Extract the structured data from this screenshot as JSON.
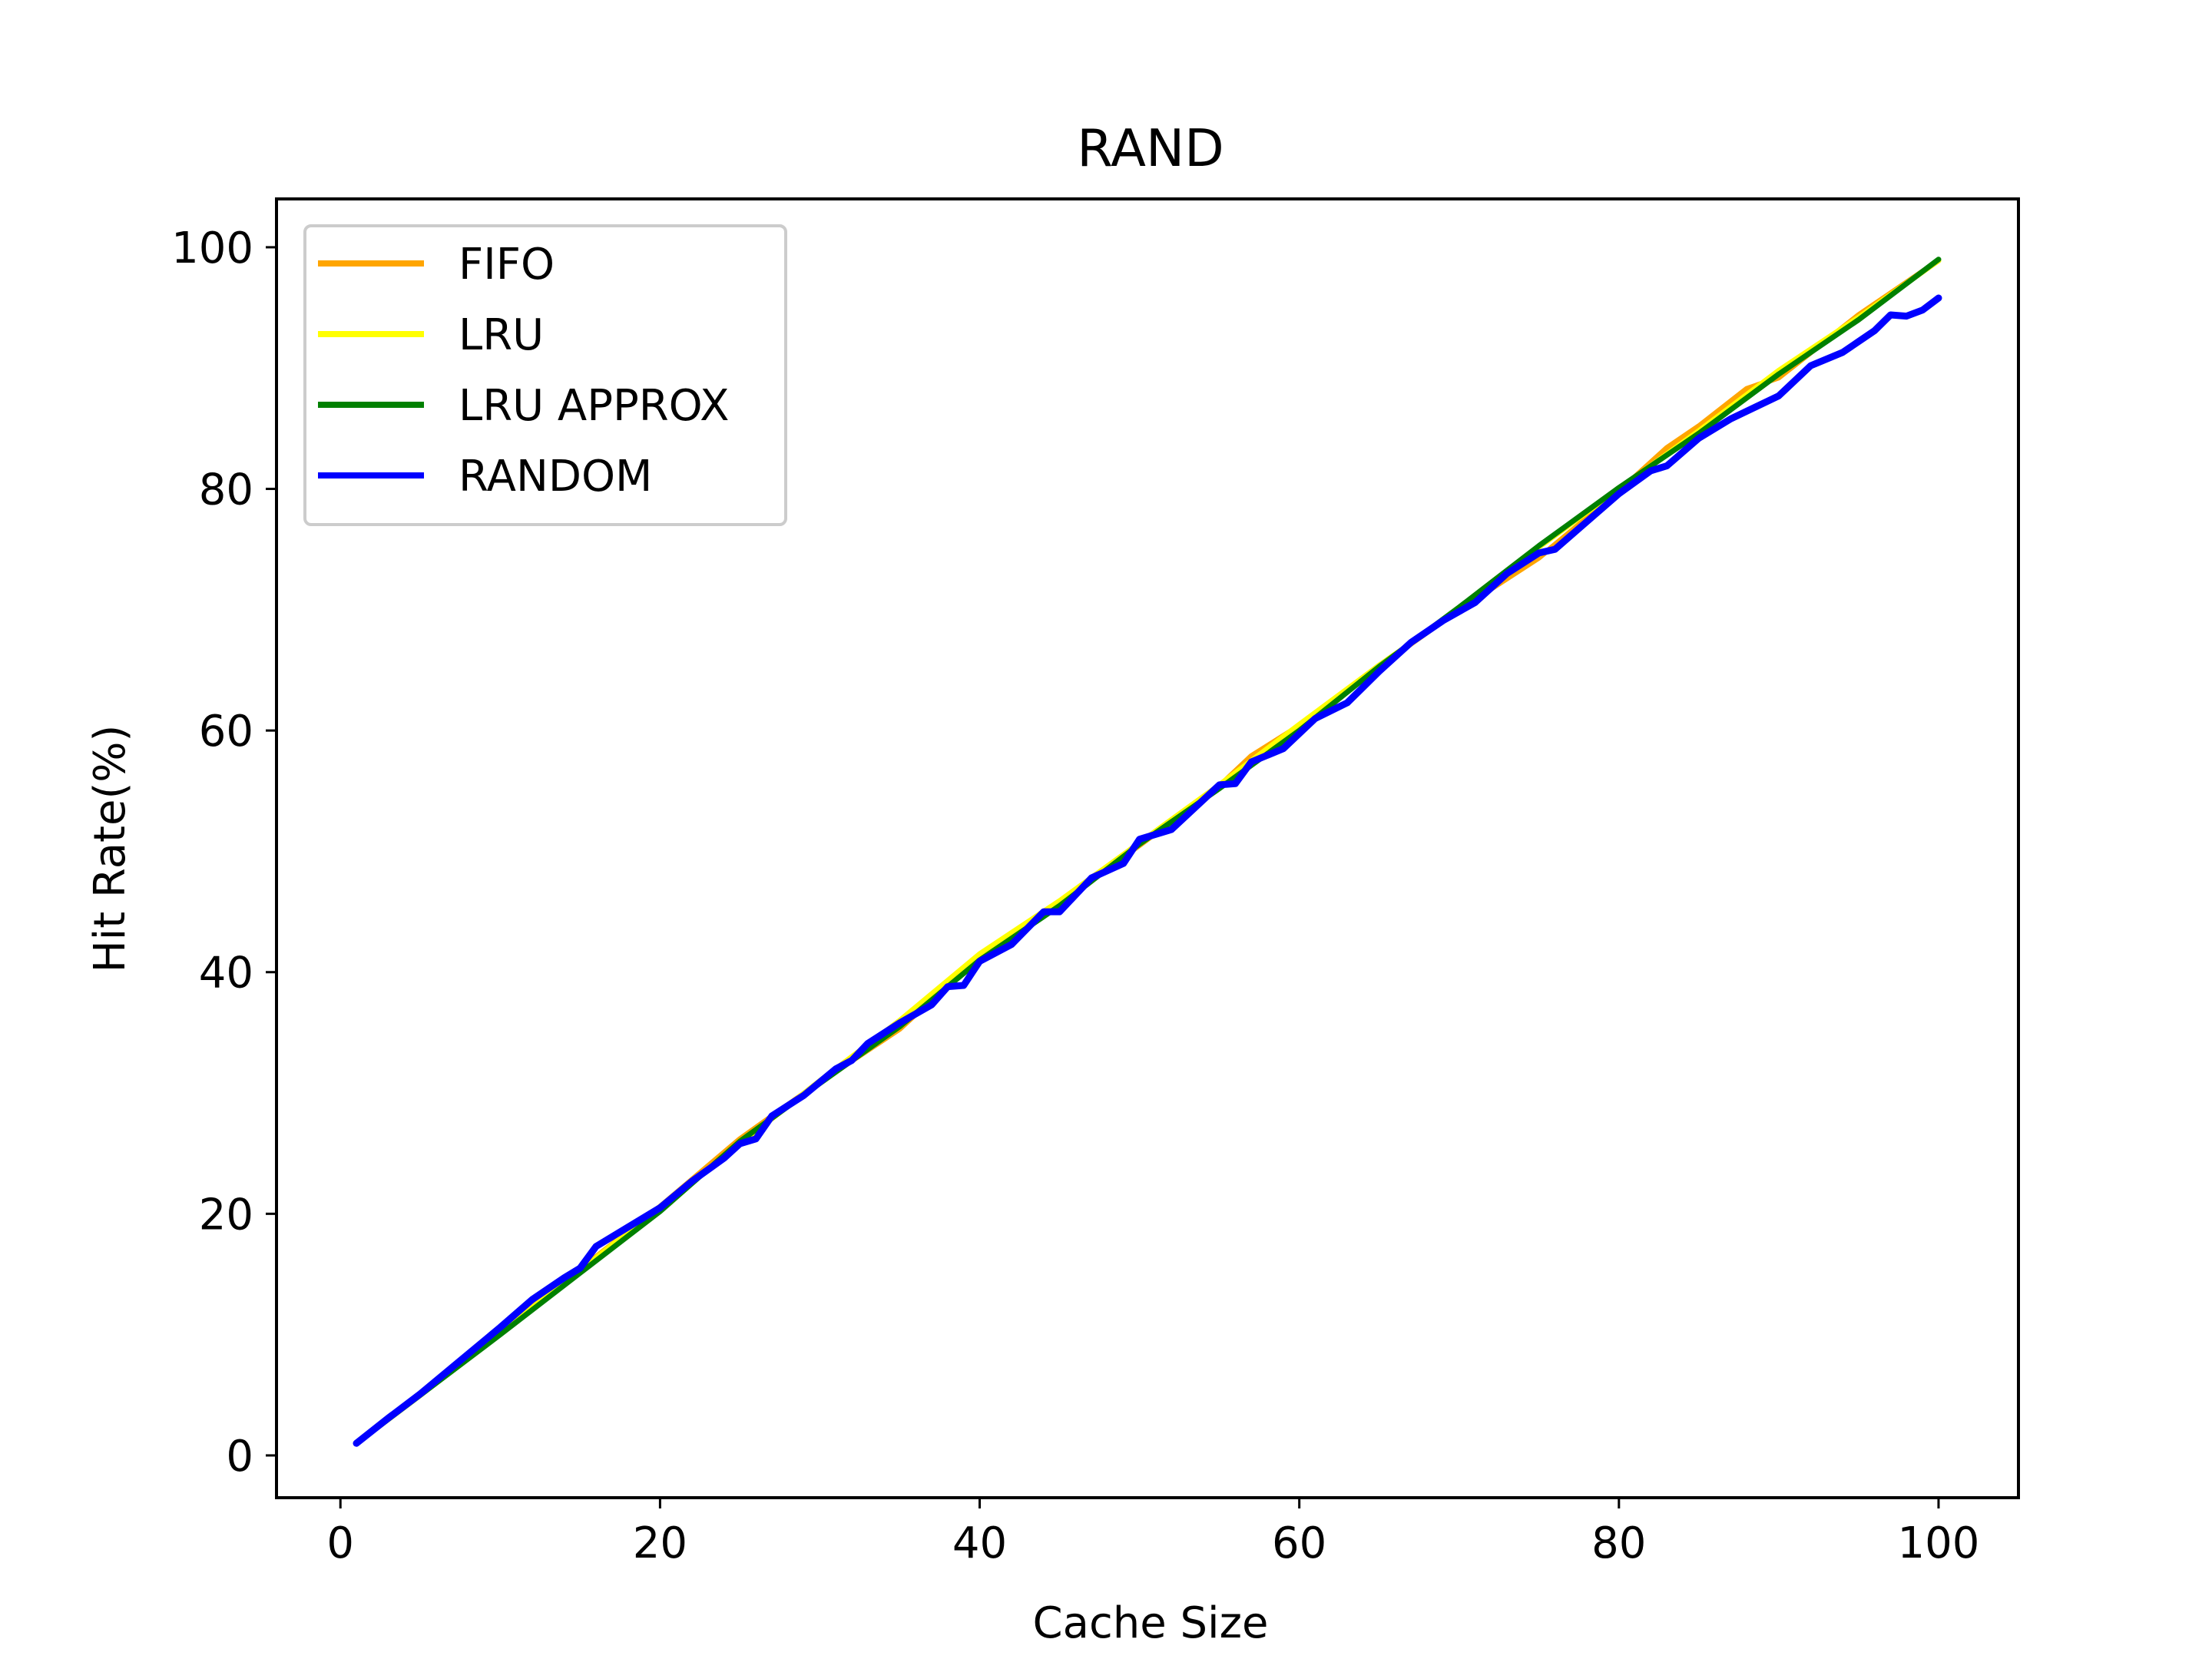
{
  "chart_data": {
    "type": "line",
    "title": "RAND",
    "xlabel": "Cache Size",
    "ylabel": "Hit Rate(%)",
    "xlim": [
      -4,
      105
    ],
    "ylim": [
      -3.5,
      104
    ],
    "xticks": [
      0,
      20,
      40,
      60,
      80,
      100
    ],
    "yticks": [
      0,
      20,
      40,
      60,
      80,
      100
    ],
    "grid": false,
    "legend_position": "upper-left",
    "series": [
      {
        "name": "FIFO",
        "color": "#ffa500",
        "x": [
          1,
          5,
          10,
          15,
          20,
          25,
          30,
          35,
          40,
          45,
          50,
          55,
          57,
          60,
          65,
          70,
          75,
          80,
          83,
          85,
          88,
          90,
          95,
          100
        ],
        "y": [
          1,
          5,
          10.3,
          15.4,
          20.6,
          26.2,
          30.9,
          35.3,
          41.4,
          45.7,
          50.5,
          55.4,
          57.9,
          60.4,
          65.3,
          70,
          74.3,
          79.8,
          83.4,
          85.2,
          88.3,
          89.2,
          94.4,
          98.9
        ]
      },
      {
        "name": "LRU",
        "color": "#ffff00",
        "x": [
          1,
          5,
          10,
          15,
          20,
          25,
          30,
          35,
          40,
          45,
          50,
          55,
          60,
          65,
          70,
          75,
          80,
          85,
          90,
          95,
          100
        ],
        "y": [
          1,
          5,
          10.2,
          15.3,
          20.6,
          25.8,
          31,
          36,
          41.5,
          45.9,
          50.7,
          55.5,
          60.5,
          65.4,
          70,
          75.2,
          80,
          84.8,
          89.8,
          94.2,
          98.9
        ]
      },
      {
        "name": "LRU APPROX",
        "color": "#008000",
        "x": [
          1,
          5,
          10,
          15,
          20,
          25,
          30,
          35,
          40,
          45,
          50,
          55,
          60,
          65,
          70,
          75,
          80,
          85,
          90,
          95,
          100
        ],
        "y": [
          1,
          5,
          10,
          15.1,
          20.2,
          26,
          30.8,
          35.5,
          41,
          45.5,
          50.6,
          55.2,
          60,
          65.3,
          70.2,
          75.3,
          80.1,
          84.6,
          89.5,
          94,
          99
        ]
      },
      {
        "name": "RANDOM",
        "color": "#0000ff",
        "x": [
          1,
          3,
          5,
          7,
          10,
          12,
          14,
          15,
          16,
          18,
          20,
          22,
          24,
          25,
          26,
          27,
          29,
          31,
          32,
          33,
          35,
          37,
          38,
          39,
          40,
          42,
          44,
          45,
          47,
          49,
          50,
          52,
          55,
          56,
          57,
          59,
          61,
          63,
          65,
          67,
          69,
          71,
          73,
          75,
          76,
          78,
          80,
          82,
          83,
          85,
          87,
          90,
          92,
          94,
          96,
          97,
          98,
          99,
          100
        ],
        "y": [
          1,
          3.1,
          5.1,
          7.3,
          10.6,
          12.9,
          14.7,
          15.5,
          17.3,
          18.9,
          20.5,
          22.7,
          24.6,
          25.8,
          26.2,
          28.1,
          29.8,
          32,
          32.7,
          34.1,
          35.8,
          37.3,
          38.8,
          38.9,
          40.9,
          42.3,
          45,
          45,
          47.8,
          49,
          51,
          51.8,
          55.5,
          55.6,
          57.4,
          58.5,
          61,
          62.3,
          64.9,
          67.3,
          69.1,
          70.6,
          73,
          74.7,
          75,
          77.3,
          79.6,
          81.5,
          81.9,
          84.2,
          85.8,
          87.7,
          90.2,
          91.3,
          93.1,
          94.4,
          94.3,
          94.8,
          95.8
        ]
      }
    ]
  }
}
